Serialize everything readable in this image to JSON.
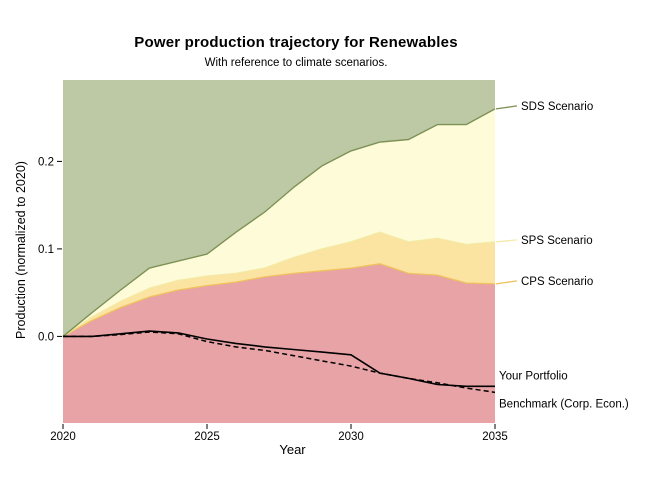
{
  "chart": {
    "title": "Power production trajectory for Renewables",
    "subtitle": "With reference to climate scenarios.",
    "xlabel": "Year",
    "ylabel": "Production (normalized to 2020)"
  },
  "chart_data": {
    "type": "area",
    "x": [
      2020,
      2021,
      2022,
      2023,
      2024,
      2025,
      2026,
      2027,
      2028,
      2029,
      2030,
      2031,
      2032,
      2033,
      2034,
      2035
    ],
    "series": [
      {
        "name": "SDS Scenario",
        "kind": "scenario-boundary",
        "values": [
          0,
          0.027,
          0.053,
          0.078,
          0.086,
          0.094,
          0.119,
          0.142,
          0.17,
          0.195,
          0.212,
          0.222,
          0.225,
          0.242,
          0.242,
          0.26
        ]
      },
      {
        "name": "SPS Scenario",
        "kind": "scenario-boundary",
        "values": [
          0,
          0.022,
          0.04,
          0.055,
          0.064,
          0.069,
          0.072,
          0.078,
          0.09,
          0.1,
          0.108,
          0.119,
          0.108,
          0.112,
          0.105,
          0.108
        ]
      },
      {
        "name": "CPS Scenario",
        "kind": "scenario-boundary",
        "values": [
          0,
          0.018,
          0.033,
          0.045,
          0.053,
          0.058,
          0.062,
          0.068,
          0.072,
          0.075,
          0.078,
          0.083,
          0.072,
          0.07,
          0.061,
          0.06
        ]
      },
      {
        "name": "Your Portfolio",
        "kind": "line-solid",
        "values": [
          0,
          0.0,
          0.003,
          0.006,
          0.004,
          -0.003,
          -0.008,
          -0.012,
          -0.015,
          -0.018,
          -0.021,
          -0.042,
          -0.048,
          -0.055,
          -0.057,
          -0.057
        ]
      },
      {
        "name": "Benchmark (Corp. Econ.)",
        "kind": "line-dashed",
        "values": [
          0,
          0.0,
          0.002,
          0.005,
          0.003,
          -0.006,
          -0.012,
          -0.016,
          -0.022,
          -0.028,
          -0.034,
          -0.042,
          -0.048,
          -0.053,
          -0.059,
          -0.064
        ]
      }
    ],
    "x_ticks": {
      "values": [
        2020,
        2025,
        2030,
        2035
      ],
      "labels": [
        "2020",
        "2025",
        "2030",
        "2035"
      ]
    },
    "y_ticks": {
      "values": [
        0.0,
        0.1,
        0.2
      ],
      "labels": [
        "0.0",
        "0.1",
        "0.2"
      ]
    },
    "xlim": [
      2020,
      2035
    ],
    "ylim": [
      -0.099,
      0.293
    ],
    "grid": false,
    "legend_position": "right-annotations",
    "title": "Power production trajectory for Renewables",
    "xlabel": "Year",
    "ylabel": "Production (normalized to 2020)"
  },
  "colors": {
    "background": "#FFFFFF",
    "text": "#000000",
    "sds_fill": "#BDC9A5",
    "sds_line": "#7E9257",
    "sps_fill": "#FDFBD8",
    "sps_line": "#F4E9A5",
    "cps_fill": "#FBE3A1",
    "cps_line": "#EFC25E",
    "below_fill": "#E7A3A6",
    "portfolio_line": "#000000",
    "benchmark_line": "#000000"
  }
}
